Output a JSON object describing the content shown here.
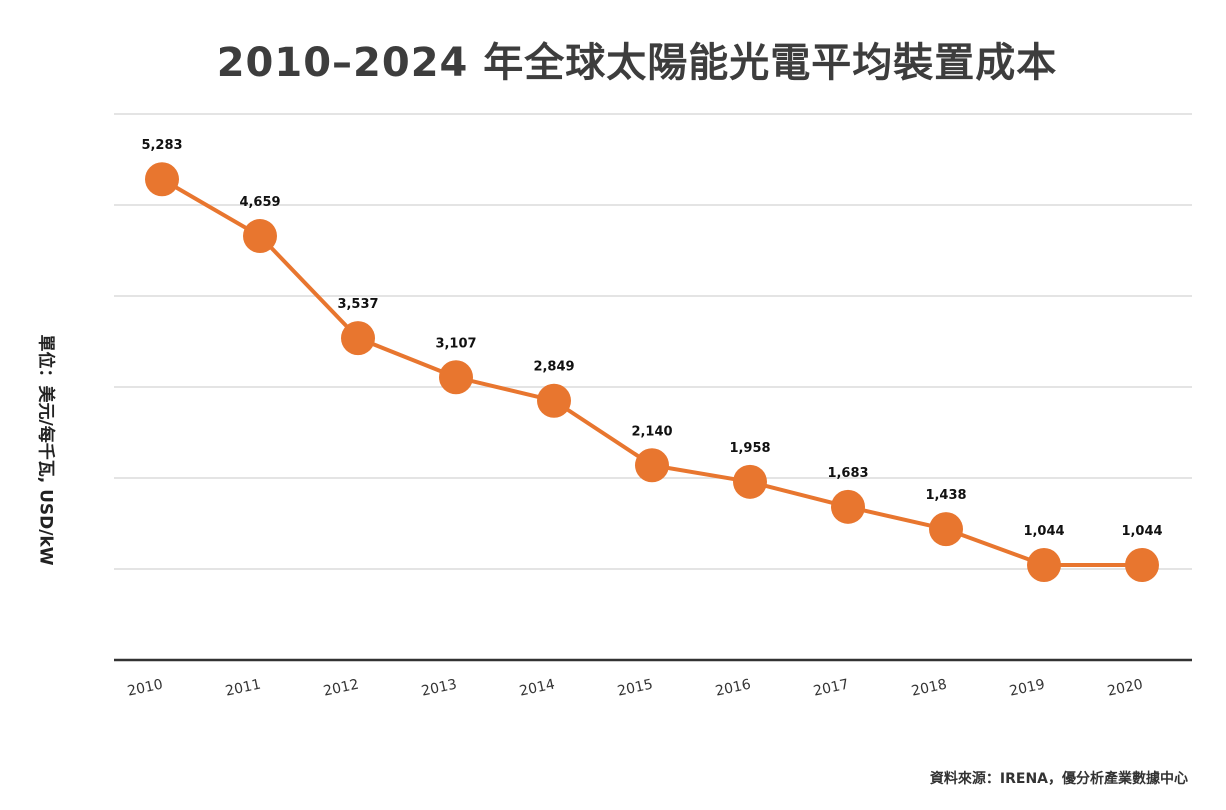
{
  "chart_data": {
    "type": "line",
    "title": "2010–2024 年全球太陽能光電平均裝置成本",
    "ylabel": "單位：美元/每千瓦, USD/kW",
    "x": [
      "2010",
      "2011",
      "2012",
      "2013",
      "2014",
      "2015",
      "2016",
      "2017",
      "2018",
      "2019",
      "2020"
    ],
    "series": [
      {
        "values": [
          5283,
          4659,
          3537,
          3107,
          2849,
          2140,
          1958,
          1683,
          1438,
          1044,
          1044
        ]
      }
    ],
    "data_labels": [
      "5,283",
      "4,659",
      "3,537",
      "3,107",
      "2,849",
      "2,140",
      "1,958",
      "1,683",
      "1,438",
      "1,044",
      "1,044"
    ],
    "ylim": [
      0,
      6000
    ],
    "y_gridlines": [
      1000,
      2000,
      3000,
      4000,
      5000,
      6000
    ],
    "grid": true,
    "legend": "none",
    "colors": {
      "series": "#e8762f",
      "title": "#3d3d3d",
      "grid": "#dcdcdc"
    }
  },
  "source": "資料來源：IRENA，優分析產業數據中心"
}
